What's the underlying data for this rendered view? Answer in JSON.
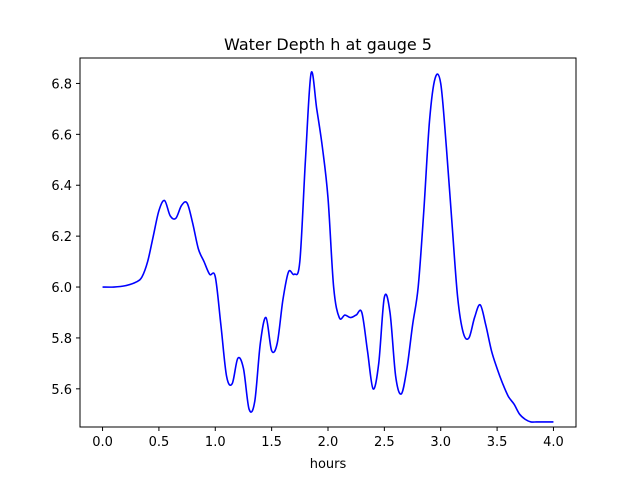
{
  "chart_data": {
    "type": "line",
    "title": "Water Depth h at gauge 5",
    "xlabel": "hours",
    "ylabel": "",
    "xlim": [
      -0.2,
      4.2
    ],
    "ylim": [
      5.45,
      6.9
    ],
    "xticks": [
      0.0,
      0.5,
      1.0,
      1.5,
      2.0,
      2.5,
      3.0,
      3.5,
      4.0
    ],
    "xtick_labels": [
      "0.0",
      "0.5",
      "1.0",
      "1.5",
      "2.0",
      "2.5",
      "3.0",
      "3.5",
      "4.0"
    ],
    "yticks": [
      5.6,
      5.8,
      6.0,
      6.2,
      6.4,
      6.6,
      6.8
    ],
    "ytick_labels": [
      "5.6",
      "5.8",
      "6.0",
      "6.2",
      "6.4",
      "6.6",
      "6.8"
    ],
    "grid": false,
    "series": [
      {
        "name": "",
        "color": "#0000ff",
        "x": [
          0.0,
          0.1,
          0.2,
          0.3,
          0.35,
          0.4,
          0.45,
          0.5,
          0.55,
          0.6,
          0.65,
          0.7,
          0.75,
          0.8,
          0.85,
          0.9,
          0.95,
          1.0,
          1.05,
          1.1,
          1.15,
          1.2,
          1.25,
          1.3,
          1.35,
          1.4,
          1.45,
          1.5,
          1.55,
          1.6,
          1.65,
          1.7,
          1.75,
          1.8,
          1.85,
          1.9,
          1.95,
          2.0,
          2.05,
          2.1,
          2.15,
          2.2,
          2.25,
          2.3,
          2.35,
          2.4,
          2.45,
          2.5,
          2.55,
          2.6,
          2.65,
          2.7,
          2.75,
          2.8,
          2.85,
          2.9,
          2.95,
          3.0,
          3.05,
          3.1,
          3.15,
          3.2,
          3.25,
          3.3,
          3.35,
          3.4,
          3.45,
          3.5,
          3.55,
          3.6,
          3.65,
          3.7,
          3.75,
          3.8,
          3.85,
          3.9,
          3.95,
          4.0
        ],
        "y": [
          6.0,
          6.0,
          6.005,
          6.02,
          6.04,
          6.1,
          6.2,
          6.3,
          6.34,
          6.28,
          6.27,
          6.32,
          6.33,
          6.25,
          6.15,
          6.1,
          6.05,
          6.04,
          5.85,
          5.65,
          5.62,
          5.72,
          5.68,
          5.52,
          5.55,
          5.78,
          5.88,
          5.75,
          5.78,
          5.95,
          6.06,
          6.05,
          6.1,
          6.5,
          6.84,
          6.7,
          6.55,
          6.35,
          6.0,
          5.88,
          5.89,
          5.88,
          5.89,
          5.9,
          5.75,
          5.6,
          5.7,
          5.96,
          5.9,
          5.65,
          5.58,
          5.68,
          5.85,
          6.0,
          6.3,
          6.65,
          6.82,
          6.8,
          6.55,
          6.25,
          5.96,
          5.82,
          5.8,
          5.88,
          5.93,
          5.85,
          5.75,
          5.68,
          5.62,
          5.57,
          5.54,
          5.5,
          5.48,
          5.47,
          5.47,
          5.47,
          5.47,
          5.47
        ]
      }
    ]
  }
}
